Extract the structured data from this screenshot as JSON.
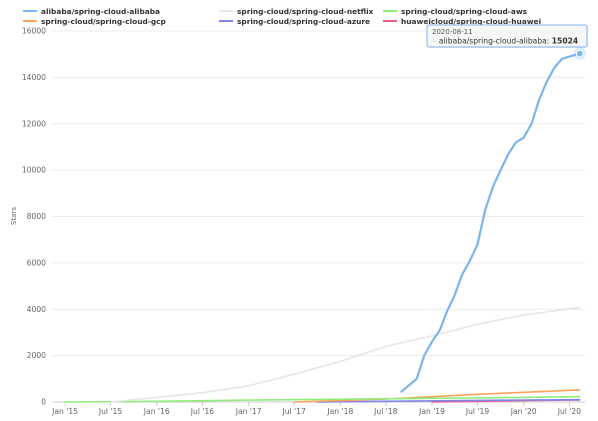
{
  "chart_data": {
    "type": "line",
    "ylabel": "Stars",
    "ylim": [
      0,
      16000
    ],
    "y_ticks": [
      "0",
      "2000",
      "4000",
      "6000",
      "8000",
      "10000",
      "12000",
      "14000",
      "16000"
    ],
    "x_ticks": [
      "Jan '15",
      "Jul '15",
      "Jan '16",
      "Jul '16",
      "Jan '17",
      "Jul '17",
      "Jan '18",
      "Jul '18",
      "Jan '19",
      "Jul '19",
      "Jan '20",
      "Jul '20"
    ],
    "grid": true,
    "legend_position": "top",
    "series": [
      {
        "name": "alibaba/spring-cloud-alibaba",
        "color": "#7cb5ec",
        "points": [
          [
            "2018-09",
            450
          ],
          [
            "2018-11",
            1000
          ],
          [
            "2018-12",
            2000
          ],
          [
            "2019-01",
            2600
          ],
          [
            "2019-02",
            3100
          ],
          [
            "2019-03",
            3900
          ],
          [
            "2019-04",
            4600
          ],
          [
            "2019-05",
            5500
          ],
          [
            "2019-06",
            6100
          ],
          [
            "2019-07",
            6800
          ],
          [
            "2019-08",
            8300
          ],
          [
            "2019-09",
            9300
          ],
          [
            "2019-10",
            10000
          ],
          [
            "2019-11",
            10700
          ],
          [
            "2019-12",
            11200
          ],
          [
            "2020-01",
            11400
          ],
          [
            "2020-02",
            12000
          ],
          [
            "2020-03",
            13000
          ],
          [
            "2020-04",
            13800
          ],
          [
            "2020-05",
            14400
          ],
          [
            "2020-06",
            14800
          ],
          [
            "2020-08-11",
            15024
          ]
        ]
      },
      {
        "name": "spring-cloud/spring-cloud-netflix",
        "color": "#e6e6e6",
        "points": [
          [
            "2015-07",
            0
          ],
          [
            "2016-01",
            200
          ],
          [
            "2016-07",
            400
          ],
          [
            "2017-01",
            700
          ],
          [
            "2017-07",
            1200
          ],
          [
            "2018-01",
            1750
          ],
          [
            "2018-07",
            2400
          ],
          [
            "2019-01",
            2850
          ],
          [
            "2019-07",
            3350
          ],
          [
            "2020-01",
            3750
          ],
          [
            "2020-08-11",
            4080
          ]
        ]
      },
      {
        "name": "spring-cloud/spring-cloud-aws",
        "color": "#90ed7d",
        "points": [
          [
            "2015-01",
            0
          ],
          [
            "2016-01",
            30
          ],
          [
            "2017-01",
            80
          ],
          [
            "2018-01",
            120
          ],
          [
            "2019-01",
            160
          ],
          [
            "2020-01",
            200
          ],
          [
            "2020-08-11",
            230
          ]
        ]
      },
      {
        "name": "spring-cloud/spring-cloud-gcp",
        "color": "#f7a35c",
        "points": [
          [
            "2017-07",
            0
          ],
          [
            "2018-01",
            60
          ],
          [
            "2018-07",
            130
          ],
          [
            "2019-01",
            230
          ],
          [
            "2019-07",
            330
          ],
          [
            "2020-01",
            420
          ],
          [
            "2020-08-11",
            520
          ]
        ]
      },
      {
        "name": "spring-cloud/spring-cloud-azure",
        "color": "#8085e9",
        "points": [
          [
            "2017-10",
            0
          ],
          [
            "2018-07",
            30
          ],
          [
            "2019-07",
            70
          ],
          [
            "2020-08-11",
            100
          ]
        ]
      },
      {
        "name": "huaweicloud/spring-cloud-huawei",
        "color": "#f15c80",
        "points": [
          [
            "2019-01",
            0
          ],
          [
            "2019-07",
            30
          ],
          [
            "2020-01",
            60
          ],
          [
            "2020-08-11",
            90
          ]
        ]
      }
    ],
    "tooltip": {
      "date": "2020-08-11",
      "marker": "◦",
      "label": "alibaba/spring-cloud-alibaba:",
      "value": "15024"
    }
  }
}
